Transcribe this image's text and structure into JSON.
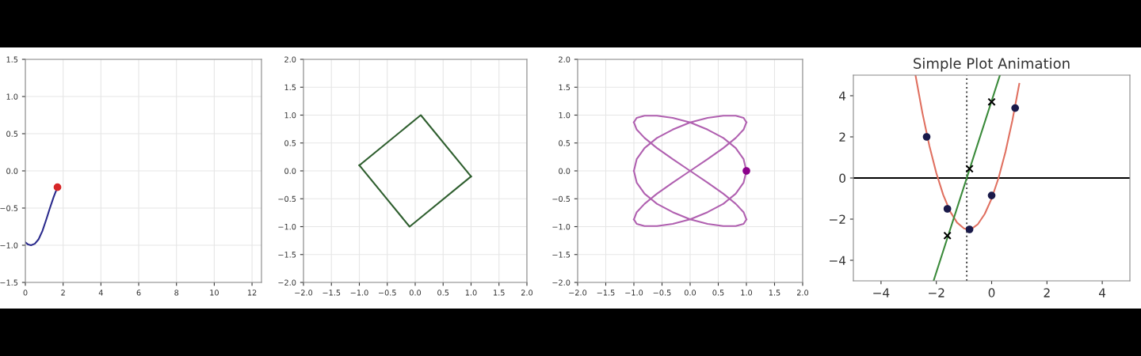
{
  "chart_data": [
    {
      "type": "line",
      "xlim": [
        0,
        12.5
      ],
      "ylim": [
        -1.5,
        1.5
      ],
      "xticks": [
        0,
        2,
        4,
        6,
        8,
        10,
        12
      ],
      "yticks": [
        {
          "value": -1.5,
          "label": "−1.5"
        },
        {
          "value": -1.0,
          "label": "−1.0"
        },
        {
          "value": -0.5,
          "label": "−0.5"
        },
        {
          "value": 0.0,
          "label": "0.0"
        },
        {
          "value": 0.5,
          "label": "0.5"
        },
        {
          "value": 1.0,
          "label": "1.0"
        },
        {
          "value": 1.5,
          "label": "1.5"
        }
      ],
      "grid": true,
      "series": [
        {
          "type": "line",
          "color": "#2a2a8c",
          "x": [
            0,
            0.15,
            0.3,
            0.5,
            0.7,
            0.9,
            1.1,
            1.3,
            1.5,
            1.7
          ],
          "values": [
            -0.96,
            -0.99,
            -1.0,
            -0.98,
            -0.92,
            -0.81,
            -0.66,
            -0.5,
            -0.35,
            -0.22
          ]
        },
        {
          "type": "scatter",
          "marker": "circle",
          "color": "#d62728",
          "x": [
            1.7
          ],
          "values": [
            -0.22
          ]
        }
      ]
    },
    {
      "type": "line",
      "xlim": [
        -2,
        2
      ],
      "ylim": [
        -2,
        2
      ],
      "xticks": [
        {
          "value": -2.0,
          "label": "−2.0"
        },
        {
          "value": -1.5,
          "label": "−1.5"
        },
        {
          "value": -1.0,
          "label": "−1.0"
        },
        {
          "value": -0.5,
          "label": "−0.5"
        },
        {
          "value": 0.0,
          "label": "0.0"
        },
        {
          "value": 0.5,
          "label": "0.5"
        },
        {
          "value": 1.0,
          "label": "1.0"
        },
        {
          "value": 1.5,
          "label": "1.5"
        },
        {
          "value": 2.0,
          "label": "2.0"
        }
      ],
      "yticks": [
        {
          "value": -2.0,
          "label": "−2.0"
        },
        {
          "value": -1.5,
          "label": "−1.5"
        },
        {
          "value": -1.0,
          "label": "−1.0"
        },
        {
          "value": -0.5,
          "label": "−0.5"
        },
        {
          "value": 0.0,
          "label": "0.0"
        },
        {
          "value": 0.5,
          "label": "0.5"
        },
        {
          "value": 1.0,
          "label": "1.0"
        },
        {
          "value": 1.5,
          "label": "1.5"
        },
        {
          "value": 2.0,
          "label": "2.0"
        }
      ],
      "grid": true,
      "series": [
        {
          "type": "line",
          "color": "#2f5f2f",
          "x": [
            -1.0,
            0.1,
            1.0
          ],
          "values": [
            0.1,
            1.0,
            -0.1
          ]
        },
        {
          "type": "line",
          "color": "#2f5f2f",
          "x": [
            -1.0,
            -0.1,
            1.0
          ],
          "values": [
            0.1,
            -1.0,
            -0.1
          ]
        }
      ]
    },
    {
      "type": "line",
      "xlim": [
        -2,
        2
      ],
      "ylim": [
        -2,
        2
      ],
      "xticks": [
        {
          "value": -2.0,
          "label": "−2.0"
        },
        {
          "value": -1.5,
          "label": "−1.5"
        },
        {
          "value": -1.0,
          "label": "−1.0"
        },
        {
          "value": -0.5,
          "label": "−0.5"
        },
        {
          "value": 0.0,
          "label": "0.0"
        },
        {
          "value": 0.5,
          "label": "0.5"
        },
        {
          "value": 1.0,
          "label": "1.0"
        },
        {
          "value": 1.5,
          "label": "1.5"
        },
        {
          "value": 2.0,
          "label": "2.0"
        }
      ],
      "yticks": [
        {
          "value": -2.0,
          "label": "−2.0"
        },
        {
          "value": -1.5,
          "label": "−1.5"
        },
        {
          "value": -1.0,
          "label": "−1.0"
        },
        {
          "value": -0.5,
          "label": "−0.5"
        },
        {
          "value": 0.0,
          "label": "0.0"
        },
        {
          "value": 0.5,
          "label": "0.5"
        },
        {
          "value": 1.0,
          "label": "1.0"
        },
        {
          "value": 1.5,
          "label": "1.5"
        },
        {
          "value": 2.0,
          "label": "2.0"
        }
      ],
      "grid": true,
      "series": [
        {
          "type": "line",
          "color": "#b060b0",
          "x": [
            -1.0,
            -0.95,
            -0.81,
            -0.59,
            -0.31,
            0.0,
            0.31,
            0.59,
            0.81,
            0.95,
            1.0
          ],
          "values": [
            0.87,
            0.95,
            0.99,
            0.99,
            0.95,
            0.87,
            0.74,
            0.59,
            0.41,
            0.21,
            0.0
          ]
        },
        {
          "type": "line",
          "color": "#b060b0",
          "x": [
            -1.0,
            -0.95,
            -0.81,
            -0.59,
            -0.31,
            0.0,
            0.31,
            0.59,
            0.81,
            0.95,
            1.0
          ],
          "values": [
            0.87,
            0.74,
            0.59,
            0.41,
            0.21,
            0.0,
            -0.21,
            -0.41,
            -0.59,
            -0.74,
            -0.87
          ]
        },
        {
          "type": "line",
          "color": "#b060b0",
          "x": [
            -1.0,
            -0.95,
            -0.81,
            -0.59,
            -0.31,
            0.0,
            0.31,
            0.59,
            0.81,
            0.95,
            1.0
          ],
          "values": [
            0.0,
            -0.21,
            -0.41,
            -0.59,
            -0.74,
            -0.87,
            -0.95,
            -0.99,
            -0.99,
            -0.95,
            -0.87
          ]
        },
        {
          "type": "line",
          "color": "#b060b0",
          "x": [
            -1.0,
            -0.95,
            -0.81,
            -0.59,
            -0.31,
            0.0,
            0.31,
            0.59,
            0.81,
            0.95,
            1.0
          ],
          "values": [
            0.0,
            0.21,
            0.41,
            0.59,
            0.74,
            0.87,
            0.95,
            0.99,
            0.99,
            0.95,
            0.87
          ]
        },
        {
          "type": "line",
          "color": "#b060b0",
          "x": [
            -1.0,
            -0.95,
            -0.81,
            -0.59,
            -0.31,
            0.0,
            0.31,
            0.59,
            0.81,
            0.95,
            1.0
          ],
          "values": [
            -0.87,
            -0.74,
            -0.59,
            -0.41,
            -0.21,
            0.0,
            0.21,
            0.41,
            0.59,
            0.74,
            0.87
          ]
        },
        {
          "type": "line",
          "color": "#b060b0",
          "x": [
            -1.0,
            -0.95,
            -0.81,
            -0.59,
            -0.31,
            0.0,
            0.31,
            0.59,
            0.81,
            0.95,
            1.0
          ],
          "values": [
            -0.87,
            -0.95,
            -0.99,
            -0.99,
            -0.95,
            -0.87,
            -0.74,
            -0.59,
            -0.41,
            -0.21,
            0.0
          ]
        },
        {
          "type": "scatter",
          "marker": "circle",
          "color": "#8b008b",
          "x": [
            1.0
          ],
          "values": [
            0.0
          ]
        }
      ]
    },
    {
      "type": "line",
      "title": "Simple Plot Animation",
      "xlim": [
        -5,
        5
      ],
      "ylim": [
        -5,
        5
      ],
      "xticks": [
        {
          "value": -4,
          "label": "−4"
        },
        {
          "value": -2,
          "label": "−2"
        },
        0,
        2,
        4
      ],
      "yticks": [
        {
          "value": -4,
          "label": "−4"
        },
        {
          "value": -2,
          "label": "−2"
        },
        0,
        2,
        4
      ],
      "grid": false,
      "ref_lines": [
        {
          "axis": "y",
          "value": 0,
          "color": "#000000",
          "line_style": "solid"
        },
        {
          "axis": "x",
          "value": -0.9,
          "color": "#555555",
          "line_style": "dotted"
        }
      ],
      "series": [
        {
          "type": "line",
          "color": "#e07060",
          "x": [
            -2.75,
            -2.5,
            -2.25,
            -2,
            -1.75,
            -1.5,
            -1.25,
            -1,
            -0.85,
            -0.7,
            -0.5,
            -0.25,
            0,
            0.25,
            0.5,
            0.75,
            1.0
          ],
          "values": [
            4.97,
            3.14,
            1.56,
            0.24,
            -0.82,
            -1.63,
            -2.17,
            -2.45,
            -2.5,
            -2.45,
            -2.25,
            -1.75,
            -1.0,
            0.0,
            1.27,
            2.8,
            4.58
          ]
        },
        {
          "type": "line",
          "color": "#3a8a3a",
          "x": [
            -2.1,
            0.3
          ],
          "values": [
            -5,
            5
          ]
        },
        {
          "type": "scatter",
          "marker": "circle",
          "color": "#1a1a4a",
          "x": [
            -2.35,
            -1.6,
            -0.8,
            0,
            0.85
          ],
          "values": [
            2,
            -1.5,
            -2.5,
            -0.85,
            3.4
          ]
        },
        {
          "type": "scatter",
          "marker": "cross",
          "color": "#000000",
          "x": [
            -1.6,
            -0.8,
            0
          ],
          "values": [
            -2.8,
            0.45,
            3.7
          ]
        }
      ]
    }
  ]
}
